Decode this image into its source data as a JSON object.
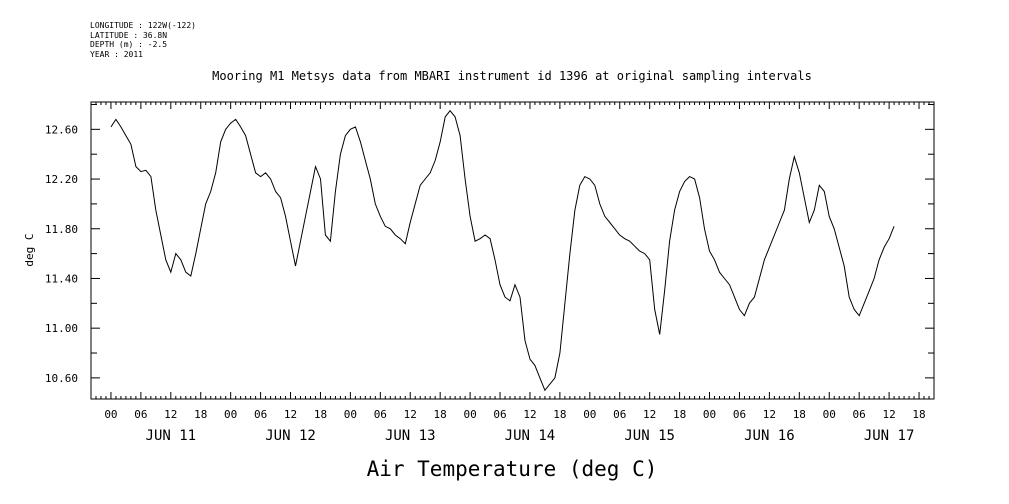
{
  "header": {
    "longitude": "LONGITUDE : 122W(-122)",
    "latitude": "LATITUDE : 36.8N",
    "depth": "DEPTH (m) : -2.5",
    "year": "YEAR : 2011"
  },
  "chart_data": {
    "type": "line",
    "title": "Mooring M1 Metsys data from MBARI instrument id 1396 at original sampling intervals",
    "xlabel": "Air Temperature (deg C)",
    "ylabel": "deg C",
    "ylim": [
      10.43,
      12.82
    ],
    "xlim_hours": [
      -4,
      165
    ],
    "y_ticks": [
      "10.60",
      "11.00",
      "11.40",
      "11.80",
      "12.20",
      "12.60"
    ],
    "y_tick_values": [
      10.6,
      11.0,
      11.4,
      11.8,
      12.2,
      12.6
    ],
    "x_hour_ticks": [
      "00",
      "06",
      "12",
      "18",
      "00",
      "06",
      "12",
      "18",
      "00",
      "06",
      "12",
      "18",
      "00",
      "06",
      "12",
      "18",
      "00",
      "06",
      "12",
      "18",
      "00",
      "06",
      "12",
      "18",
      "00",
      "06",
      "12",
      "18"
    ],
    "x_day_labels": [
      "JUN 11",
      "JUN 12",
      "JUN 13",
      "JUN 14",
      "JUN 15",
      "JUN 16",
      "JUN 17"
    ],
    "grid": false,
    "series": [
      {
        "color": "#000000",
        "points": [
          [
            0,
            12.62
          ],
          [
            1,
            12.68
          ],
          [
            2,
            12.62
          ],
          [
            3,
            12.55
          ],
          [
            4,
            12.48
          ],
          [
            5,
            12.3
          ],
          [
            6,
            12.26
          ],
          [
            7,
            12.27
          ],
          [
            8,
            12.22
          ],
          [
            9,
            11.95
          ],
          [
            10,
            11.75
          ],
          [
            11,
            11.55
          ],
          [
            12,
            11.45
          ],
          [
            13,
            11.6
          ],
          [
            14,
            11.55
          ],
          [
            15,
            11.45
          ],
          [
            16,
            11.42
          ],
          [
            17,
            11.6
          ],
          [
            18,
            11.8
          ],
          [
            19,
            12.0
          ],
          [
            20,
            12.1
          ],
          [
            21,
            12.25
          ],
          [
            22,
            12.5
          ],
          [
            23,
            12.6
          ],
          [
            24,
            12.65
          ],
          [
            25,
            12.68
          ],
          [
            26,
            12.62
          ],
          [
            27,
            12.55
          ],
          [
            28,
            12.4
          ],
          [
            29,
            12.25
          ],
          [
            30,
            12.22
          ],
          [
            31,
            12.25
          ],
          [
            32,
            12.2
          ],
          [
            33,
            12.1
          ],
          [
            34,
            12.05
          ],
          [
            35,
            11.9
          ],
          [
            36,
            11.7
          ],
          [
            37,
            11.5
          ],
          [
            38,
            11.7
          ],
          [
            39,
            11.9
          ],
          [
            40,
            12.1
          ],
          [
            41,
            12.3
          ],
          [
            42,
            12.2
          ],
          [
            43,
            11.75
          ],
          [
            44,
            11.7
          ],
          [
            45,
            12.1
          ],
          [
            46,
            12.4
          ],
          [
            47,
            12.55
          ],
          [
            48,
            12.6
          ],
          [
            49,
            12.62
          ],
          [
            50,
            12.5
          ],
          [
            51,
            12.35
          ],
          [
            52,
            12.2
          ],
          [
            53,
            12.0
          ],
          [
            54,
            11.9
          ],
          [
            55,
            11.82
          ],
          [
            56,
            11.8
          ],
          [
            57,
            11.75
          ],
          [
            58,
            11.72
          ],
          [
            59,
            11.68
          ],
          [
            60,
            11.85
          ],
          [
            61,
            12.0
          ],
          [
            62,
            12.15
          ],
          [
            63,
            12.2
          ],
          [
            64,
            12.25
          ],
          [
            65,
            12.35
          ],
          [
            66,
            12.5
          ],
          [
            67,
            12.7
          ],
          [
            68,
            12.75
          ],
          [
            69,
            12.7
          ],
          [
            70,
            12.55
          ],
          [
            71,
            12.2
          ],
          [
            72,
            11.9
          ],
          [
            73,
            11.7
          ],
          [
            74,
            11.72
          ],
          [
            75,
            11.75
          ],
          [
            76,
            11.72
          ],
          [
            77,
            11.55
          ],
          [
            78,
            11.35
          ],
          [
            79,
            11.25
          ],
          [
            80,
            11.22
          ],
          [
            81,
            11.35
          ],
          [
            82,
            11.25
          ],
          [
            83,
            10.9
          ],
          [
            84,
            10.75
          ],
          [
            85,
            10.7
          ],
          [
            86,
            10.6
          ],
          [
            87,
            10.5
          ],
          [
            88,
            10.55
          ],
          [
            89,
            10.6
          ],
          [
            90,
            10.8
          ],
          [
            91,
            11.2
          ],
          [
            92,
            11.6
          ],
          [
            93,
            11.95
          ],
          [
            94,
            12.15
          ],
          [
            95,
            12.22
          ],
          [
            96,
            12.2
          ],
          [
            97,
            12.15
          ],
          [
            98,
            12.0
          ],
          [
            99,
            11.9
          ],
          [
            100,
            11.85
          ],
          [
            101,
            11.8
          ],
          [
            102,
            11.75
          ],
          [
            103,
            11.72
          ],
          [
            104,
            11.7
          ],
          [
            105,
            11.66
          ],
          [
            106,
            11.62
          ],
          [
            107,
            11.6
          ],
          [
            108,
            11.55
          ],
          [
            109,
            11.15
          ],
          [
            110,
            10.95
          ],
          [
            111,
            11.3
          ],
          [
            112,
            11.7
          ],
          [
            113,
            11.95
          ],
          [
            114,
            12.1
          ],
          [
            115,
            12.18
          ],
          [
            116,
            12.22
          ],
          [
            117,
            12.2
          ],
          [
            118,
            12.05
          ],
          [
            119,
            11.8
          ],
          [
            120,
            11.62
          ],
          [
            121,
            11.55
          ],
          [
            122,
            11.45
          ],
          [
            123,
            11.4
          ],
          [
            124,
            11.35
          ],
          [
            125,
            11.25
          ],
          [
            126,
            11.15
          ],
          [
            127,
            11.1
          ],
          [
            128,
            11.2
          ],
          [
            129,
            11.25
          ],
          [
            130,
            11.4
          ],
          [
            131,
            11.55
          ],
          [
            132,
            11.65
          ],
          [
            133,
            11.75
          ],
          [
            134,
            11.85
          ],
          [
            135,
            11.95
          ],
          [
            136,
            12.2
          ],
          [
            137,
            12.38
          ],
          [
            138,
            12.25
          ],
          [
            139,
            12.05
          ],
          [
            140,
            11.85
          ],
          [
            141,
            11.95
          ],
          [
            142,
            12.15
          ],
          [
            143,
            12.1
          ],
          [
            144,
            11.9
          ],
          [
            145,
            11.8
          ],
          [
            146,
            11.65
          ],
          [
            147,
            11.5
          ],
          [
            148,
            11.25
          ],
          [
            149,
            11.15
          ],
          [
            150,
            11.1
          ],
          [
            151,
            11.2
          ],
          [
            152,
            11.3
          ],
          [
            153,
            11.4
          ],
          [
            154,
            11.55
          ],
          [
            155,
            11.65
          ],
          [
            156,
            11.72
          ],
          [
            157,
            11.82
          ]
        ]
      }
    ]
  }
}
